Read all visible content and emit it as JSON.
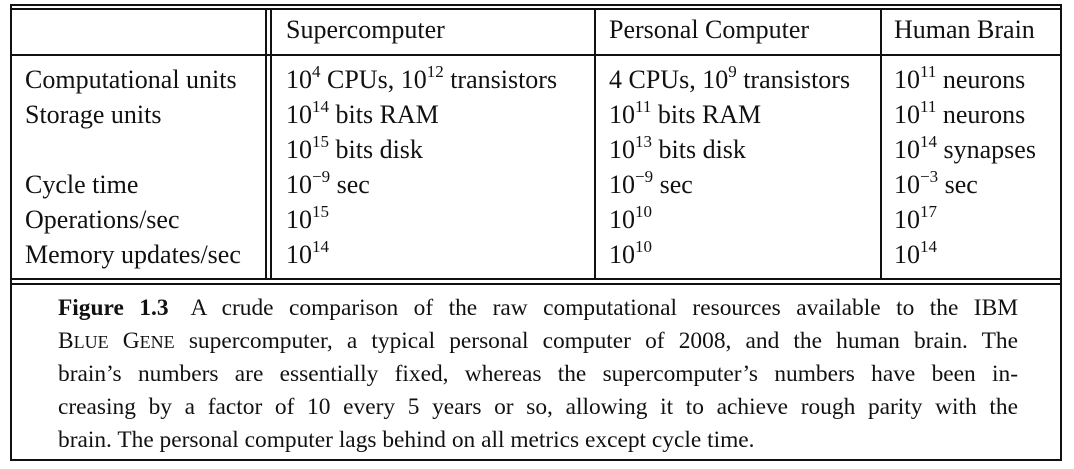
{
  "table": {
    "headers": [
      "",
      "Supercomputer",
      "Personal Computer",
      "Human Brain"
    ],
    "rows": [
      {
        "label": "Computational units",
        "super": "10^4 CPUs, 10^12 transistors",
        "pc": "4 CPUs, 10^9 transistors",
        "brain": "10^11 neurons"
      },
      {
        "label": "Storage units",
        "super": "10^14 bits RAM",
        "pc": "10^11 bits RAM",
        "brain": "10^11 neurons"
      },
      {
        "label": "",
        "super": "10^15 bits disk",
        "pc": "10^13 bits disk",
        "brain": "10^14 synapses"
      },
      {
        "label": "Cycle time",
        "super": "10^-9 sec",
        "pc": "10^-9 sec",
        "brain": "10^-3 sec"
      },
      {
        "label": "Operations/sec",
        "super": "10^15",
        "pc": "10^10",
        "brain": "10^17"
      },
      {
        "label": "Memory updates/sec",
        "super": "10^14",
        "pc": "10^10",
        "brain": "10^14"
      }
    ]
  },
  "caption": {
    "label": "Figure 1.3",
    "lines": [
      "A crude comparison of the raw computational resources available to the IBM",
      "BLUE GENE supercomputer, a typical personal computer of 2008, and the human brain. The",
      "brain’s numbers are essentially fixed, whereas the supercomputer’s numbers have been in-",
      "creasing by a factor of 10 every 5 years or so, allowing it to achieve rough parity with the",
      "brain. The personal computer lags behind on all metrics except cycle time."
    ]
  }
}
